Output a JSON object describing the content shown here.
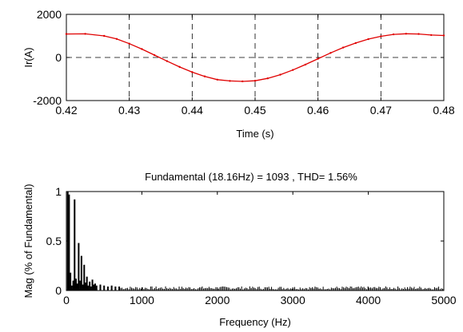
{
  "chart_data": [
    {
      "type": "line",
      "title": "",
      "xlabel": "Time (s)",
      "ylabel": "Ir(A)",
      "xlim": [
        0.42,
        0.48
      ],
      "ylim": [
        -2000,
        2000
      ],
      "xticks": [
        "0.42",
        "0.43",
        "0.44",
        "0.45",
        "0.46",
        "0.47",
        "0.48"
      ],
      "yticks": [
        "-2000",
        "0",
        "2000"
      ],
      "grid": true,
      "series": [
        {
          "color": "#e00000",
          "x": [
            0.42,
            0.423,
            0.426,
            0.428,
            0.43,
            0.432,
            0.434,
            0.436,
            0.438,
            0.44,
            0.442,
            0.444,
            0.446,
            0.448,
            0.45,
            0.452,
            0.454,
            0.456,
            0.458,
            0.46,
            0.462,
            0.464,
            0.466,
            0.468,
            0.47,
            0.472,
            0.474,
            0.476,
            0.478,
            0.48
          ],
          "y": [
            1090,
            1095,
            1000,
            860,
            640,
            390,
            110,
            -170,
            -440,
            -680,
            -880,
            -1030,
            -1090,
            -1110,
            -1080,
            -970,
            -800,
            -580,
            -330,
            -60,
            210,
            460,
            670,
            850,
            980,
            1070,
            1100,
            1090,
            1040,
            1020
          ]
        }
      ]
    },
    {
      "type": "bar",
      "title": "Fundamental (18.16Hz) = 1093 , THD= 1.56%",
      "xlabel": "Frequency (Hz)",
      "ylabel": "Mag  (% of Fundamental)",
      "xlim": [
        0,
        5000
      ],
      "ylim": [
        0,
        1
      ],
      "xticks": [
        "0",
        "1000",
        "2000",
        "3000",
        "4000",
        "5000"
      ],
      "yticks": [
        "0",
        "0.5",
        "1"
      ],
      "grid": false,
      "series": [
        {
          "color": "#000000",
          "x": [
            18,
            36,
            54,
            72,
            91,
            109,
            127,
            145,
            163,
            182,
            200,
            218,
            236,
            254,
            272,
            290,
            309,
            327,
            345,
            363,
            381,
            400,
            450,
            500,
            550,
            600,
            650,
            700
          ],
          "y": [
            1.0,
            0.97,
            0.18,
            0.05,
            0.1,
            0.92,
            0.12,
            0.07,
            0.48,
            0.1,
            0.35,
            0.06,
            0.26,
            0.08,
            0.14,
            0.05,
            0.09,
            0.04,
            0.11,
            0.06,
            0.07,
            0.05,
            0.06,
            0.05,
            0.04,
            0.05,
            0.04,
            0.04
          ]
        }
      ],
      "noise_floor": 0.02
    }
  ]
}
